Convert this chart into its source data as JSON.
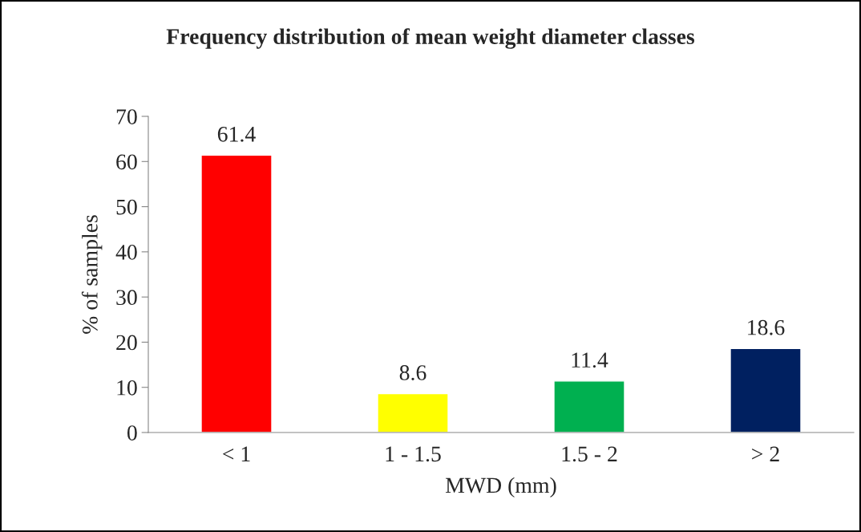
{
  "chart_data": {
    "type": "bar",
    "title": "Frequency distribution of mean weight diameter classes",
    "xlabel": "MWD (mm)",
    "ylabel": "% of samples",
    "categories": [
      "< 1",
      "1 - 1.5",
      "1.5 - 2",
      "> 2"
    ],
    "values": [
      61.4,
      8.6,
      11.4,
      18.6
    ],
    "colors": [
      "#ff0000",
      "#ffff00",
      "#00b050",
      "#002060"
    ],
    "ylim": [
      0,
      70
    ],
    "yticks": [
      0,
      10,
      20,
      30,
      40,
      50,
      60,
      70
    ],
    "data_labels": true,
    "grid": false,
    "legend": false
  }
}
